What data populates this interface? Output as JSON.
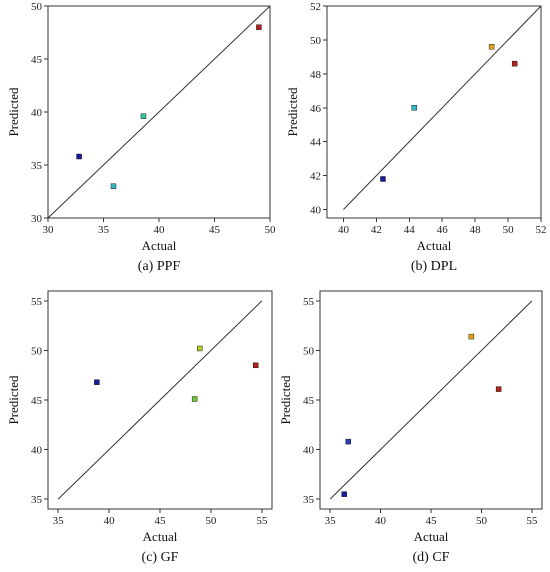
{
  "chart_data": [
    {
      "type": "scatter",
      "caption": "(a) PPF",
      "xlabel": "Actual",
      "ylabel": "Predicted",
      "xlim": [
        30,
        50
      ],
      "ylim": [
        30,
        50
      ],
      "xticks": [
        30,
        35,
        40,
        45,
        50
      ],
      "yticks": [
        30,
        35,
        40,
        45,
        50
      ],
      "reference_line": {
        "x": [
          30,
          50
        ],
        "y": [
          30,
          50
        ]
      },
      "points": [
        {
          "x": 32.8,
          "y": 35.8,
          "color": "#1a1a9e"
        },
        {
          "x": 35.9,
          "y": 33.0,
          "color": "#36b4c4"
        },
        {
          "x": 38.6,
          "y": 39.6,
          "color": "#2fc49a"
        },
        {
          "x": 49.0,
          "y": 48.0,
          "color": "#b4201e"
        }
      ]
    },
    {
      "type": "scatter",
      "caption": "(b) DPL",
      "xlabel": "Actual",
      "ylabel": "Predicted",
      "xlim": [
        39,
        52
      ],
      "ylim": [
        39.5,
        52
      ],
      "xticks": [
        40,
        42,
        44,
        46,
        48,
        50,
        52
      ],
      "yticks": [
        40,
        42,
        44,
        46,
        48,
        50,
        52
      ],
      "reference_line": {
        "x": [
          40,
          52
        ],
        "y": [
          40,
          52
        ]
      },
      "points": [
        {
          "x": 42.4,
          "y": 41.8,
          "color": "#1a1a9e"
        },
        {
          "x": 44.3,
          "y": 46.0,
          "color": "#36b4c4"
        },
        {
          "x": 49.0,
          "y": 49.6,
          "color": "#e0a020"
        },
        {
          "x": 50.4,
          "y": 48.6,
          "color": "#b4201e"
        }
      ]
    },
    {
      "type": "scatter",
      "caption": "(c) GF",
      "xlabel": "Actual",
      "ylabel": "Predicted",
      "xlim": [
        34,
        56
      ],
      "ylim": [
        34,
        56
      ],
      "xticks": [
        35,
        40,
        45,
        50,
        55
      ],
      "yticks": [
        35,
        40,
        45,
        50,
        55
      ],
      "reference_line": {
        "x": [
          35,
          55
        ],
        "y": [
          35,
          55
        ]
      },
      "points": [
        {
          "x": 38.8,
          "y": 46.8,
          "color": "#1a1a9e"
        },
        {
          "x": 48.4,
          "y": 45.1,
          "color": "#6cc43a"
        },
        {
          "x": 48.9,
          "y": 50.2,
          "color": "#a8d020"
        },
        {
          "x": 54.4,
          "y": 48.5,
          "color": "#b4201e"
        }
      ]
    },
    {
      "type": "scatter",
      "caption": "(d) CF",
      "xlabel": "Actual",
      "ylabel": "Predicted",
      "xlim": [
        34,
        56
      ],
      "ylim": [
        34,
        56
      ],
      "xticks": [
        35,
        40,
        45,
        50,
        55
      ],
      "yticks": [
        35,
        40,
        45,
        50,
        55
      ],
      "reference_line": {
        "x": [
          35,
          55
        ],
        "y": [
          35,
          55
        ]
      },
      "points": [
        {
          "x": 36.4,
          "y": 35.5,
          "color": "#1a1a9e"
        },
        {
          "x": 36.8,
          "y": 40.8,
          "color": "#2a3ab0"
        },
        {
          "x": 49.0,
          "y": 51.4,
          "color": "#e0a020"
        },
        {
          "x": 51.7,
          "y": 46.1,
          "color": "#b4201e"
        }
      ]
    }
  ]
}
